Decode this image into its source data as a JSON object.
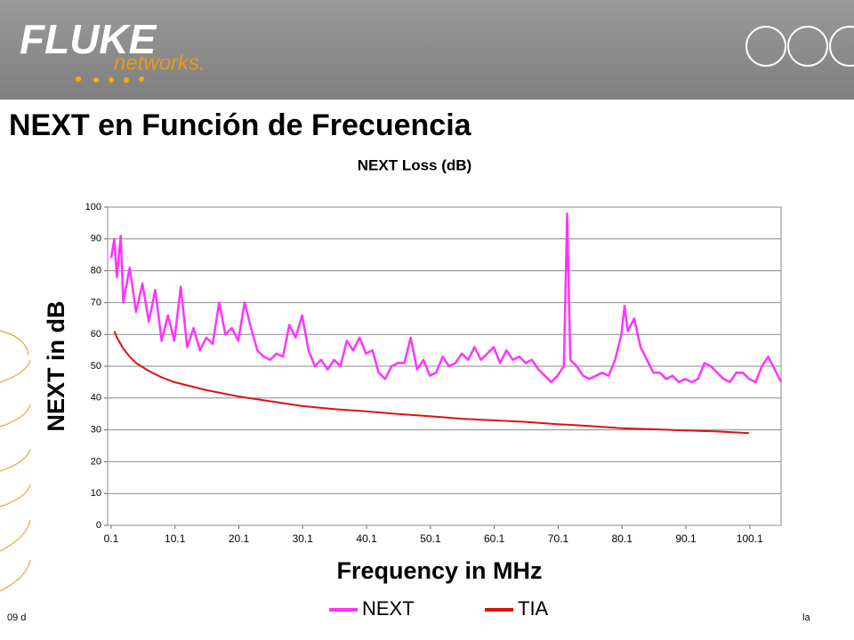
{
  "header": {
    "logo": "FLUKE",
    "logo_sub": "networks."
  },
  "slide_title": "NEXT en Función de Frecuencia",
  "footer": {
    "left": "09 d",
    "right": "la"
  },
  "chart_data": {
    "type": "line",
    "title": "NEXT Loss (dB)",
    "x_label": "Frequency in MHz",
    "y_label": "NEXT in dB",
    "xlim": [
      -0.45,
      105
    ],
    "xticks": [
      0.1,
      10.1,
      20.1,
      30.1,
      40.1,
      50.1,
      60.1,
      70.1,
      80.1,
      90.1,
      100.1
    ],
    "ylim": [
      0,
      100
    ],
    "yticks": [
      0,
      10,
      20,
      30,
      40,
      50,
      60,
      70,
      80,
      90,
      100
    ],
    "grid": true,
    "legend": "bottom",
    "series": [
      {
        "name": "NEXT",
        "color": "#ff33ff",
        "x": [
          0.1,
          0.6,
          1,
          1.6,
          2,
          3,
          4,
          5,
          6,
          7,
          8,
          9,
          10,
          11,
          12,
          13,
          14,
          15,
          16,
          17,
          18,
          19,
          20,
          21,
          22,
          23,
          24,
          25,
          26,
          27,
          28,
          29,
          30,
          31,
          32,
          33,
          34,
          35,
          36,
          37,
          38,
          39,
          40,
          41,
          42,
          43,
          44,
          45,
          46,
          47,
          48,
          49,
          50,
          51,
          52,
          53,
          54,
          55,
          56,
          57,
          58,
          59,
          60,
          61,
          62,
          63,
          64,
          65,
          66,
          67,
          68,
          69,
          70,
          71,
          71.5,
          72,
          73,
          74,
          75,
          76,
          77,
          78,
          79,
          80,
          80.5,
          81,
          82,
          83,
          84,
          85,
          86,
          87,
          88,
          89,
          90,
          91,
          92,
          93,
          94,
          95,
          96,
          97,
          98,
          99,
          100,
          101,
          102,
          103,
          104,
          105
        ],
        "values": [
          84,
          90,
          78,
          91,
          70,
          81,
          67,
          76,
          64,
          74,
          58,
          66,
          58,
          75,
          56,
          62,
          55,
          59,
          57,
          70,
          60,
          62,
          58,
          70,
          62,
          55,
          53,
          52,
          54,
          53,
          63,
          59,
          66,
          55,
          50,
          52,
          49,
          52,
          50,
          58,
          55,
          59,
          54,
          55,
          48,
          46,
          50,
          51,
          51,
          59,
          49,
          52,
          47,
          48,
          53,
          50,
          51,
          54,
          52,
          56,
          52,
          54,
          56,
          51,
          55,
          52,
          53,
          51,
          52,
          49,
          47,
          45,
          47,
          50,
          98,
          52,
          50,
          47,
          46,
          47,
          48,
          47,
          52,
          60,
          69,
          61,
          65,
          56,
          52,
          48,
          48,
          46,
          47,
          45,
          46,
          45,
          46,
          51,
          50,
          48,
          46,
          45,
          48,
          48,
          46,
          45,
          50,
          53,
          49,
          45
        ]
      },
      {
        "name": "TIA",
        "color": "#dd1111",
        "x": [
          0.6,
          1,
          2,
          3,
          4,
          6,
          8,
          10,
          12,
          15,
          18,
          20,
          25,
          30,
          35,
          40,
          45,
          50,
          55,
          60,
          65,
          70,
          75,
          80,
          85,
          90,
          95,
          100
        ],
        "values": [
          61,
          59,
          55.5,
          53,
          51,
          48.5,
          46.5,
          45,
          44,
          42.5,
          41.3,
          40.5,
          39,
          37.5,
          36.5,
          35.8,
          35,
          34.3,
          33.5,
          33,
          32.5,
          31.8,
          31.2,
          30.5,
          30.2,
          29.8,
          29.5,
          29
        ]
      }
    ]
  }
}
